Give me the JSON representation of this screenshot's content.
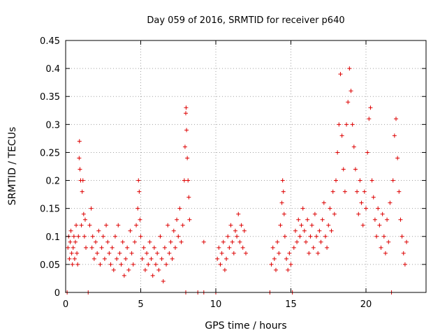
{
  "chart_data": {
    "type": "scatter",
    "title": "Day 059 of 2016, SRMTID for receiver p640",
    "xlabel": "GPS time / hours",
    "ylabel": "SRMTID / TECUs",
    "xlim": [
      0,
      24
    ],
    "ylim": [
      0,
      0.45
    ],
    "xticks": [
      0,
      5,
      10,
      15,
      20
    ],
    "xtick_labels": [
      "0",
      "5",
      "10",
      "15",
      "20"
    ],
    "yticks": [
      0,
      0.05,
      0.1,
      0.15,
      0.2,
      0.25,
      0.3,
      0.35,
      0.4,
      0.45
    ],
    "ytick_labels": [
      "0",
      "0.05",
      "0.1",
      "0.15",
      "0.2",
      "0.25",
      "0.3",
      "0.35",
      "0.4",
      "0.45"
    ],
    "grid": true,
    "marker": "plus",
    "color": "#dd0000",
    "series": [
      {
        "name": "SRMTID",
        "points": [
          [
            0.1,
            0.0
          ],
          [
            0.15,
            0.08
          ],
          [
            0.2,
            0.1
          ],
          [
            0.25,
            0.06
          ],
          [
            0.3,
            0.09
          ],
          [
            0.35,
            0.11
          ],
          [
            0.4,
            0.07
          ],
          [
            0.45,
            0.05
          ],
          [
            0.5,
            0.08
          ],
          [
            0.55,
            0.1
          ],
          [
            0.6,
            0.06
          ],
          [
            0.65,
            0.09
          ],
          [
            0.7,
            0.12
          ],
          [
            0.75,
            0.07
          ],
          [
            0.8,
            0.05
          ],
          [
            0.85,
            0.1
          ],
          [
            0.9,
            0.24
          ],
          [
            0.92,
            0.27
          ],
          [
            0.95,
            0.22
          ],
          [
            1.0,
            0.2
          ],
          [
            1.05,
            0.12
          ],
          [
            1.1,
            0.18
          ],
          [
            1.15,
            0.2
          ],
          [
            1.2,
            0.14
          ],
          [
            1.25,
            0.1
          ],
          [
            1.3,
            0.13
          ],
          [
            1.35,
            0.08
          ],
          [
            1.5,
            0.0
          ],
          [
            1.6,
            0.12
          ],
          [
            1.7,
            0.15
          ],
          [
            1.75,
            0.08
          ],
          [
            1.8,
            0.1
          ],
          [
            1.9,
            0.06
          ],
          [
            2.0,
            0.09
          ],
          [
            2.1,
            0.07
          ],
          [
            2.2,
            0.11
          ],
          [
            2.3,
            0.05
          ],
          [
            2.4,
            0.08
          ],
          [
            2.5,
            0.1
          ],
          [
            2.6,
            0.06
          ],
          [
            2.7,
            0.12
          ],
          [
            2.8,
            0.09
          ],
          [
            2.9,
            0.07
          ],
          [
            3.0,
            0.05
          ],
          [
            3.1,
            0.08
          ],
          [
            3.2,
            0.04
          ],
          [
            3.3,
            0.1
          ],
          [
            3.4,
            0.06
          ],
          [
            3.5,
            0.12
          ],
          [
            3.6,
            0.07
          ],
          [
            3.7,
            0.05
          ],
          [
            3.8,
            0.09
          ],
          [
            3.9,
            0.03
          ],
          [
            4.0,
            0.06
          ],
          [
            4.1,
            0.08
          ],
          [
            4.2,
            0.04
          ],
          [
            4.3,
            0.11
          ],
          [
            4.4,
            0.07
          ],
          [
            4.5,
            0.05
          ],
          [
            4.6,
            0.09
          ],
          [
            4.7,
            0.12
          ],
          [
            4.8,
            0.15
          ],
          [
            4.85,
            0.2
          ],
          [
            4.9,
            0.18
          ],
          [
            4.95,
            0.13
          ],
          [
            5.0,
            0.1
          ],
          [
            5.1,
            0.06
          ],
          [
            5.2,
            0.08
          ],
          [
            5.3,
            0.04
          ],
          [
            5.4,
            0.07
          ],
          [
            5.5,
            0.05
          ],
          [
            5.6,
            0.09
          ],
          [
            5.7,
            0.06
          ],
          [
            5.8,
            0.03
          ],
          [
            5.9,
            0.08
          ],
          [
            6.0,
            0.05
          ],
          [
            6.1,
            0.07
          ],
          [
            6.2,
            0.04
          ],
          [
            6.3,
            0.1
          ],
          [
            6.4,
            0.06
          ],
          [
            6.5,
            0.02
          ],
          [
            6.6,
            0.08
          ],
          [
            6.7,
            0.05
          ],
          [
            6.8,
            0.12
          ],
          [
            6.9,
            0.07
          ],
          [
            7.0,
            0.09
          ],
          [
            7.1,
            0.06
          ],
          [
            7.2,
            0.11
          ],
          [
            7.3,
            0.08
          ],
          [
            7.4,
            0.13
          ],
          [
            7.5,
            0.1
          ],
          [
            7.6,
            0.15
          ],
          [
            7.7,
            0.09
          ],
          [
            7.8,
            0.12
          ],
          [
            7.9,
            0.2
          ],
          [
            7.95,
            0.26
          ],
          [
            8.0,
            0.32
          ],
          [
            8.02,
            0.33
          ],
          [
            8.05,
            0.29
          ],
          [
            8.1,
            0.24
          ],
          [
            8.15,
            0.2
          ],
          [
            8.2,
            0.17
          ],
          [
            8.25,
            0.13
          ],
          [
            8.0,
            0.0
          ],
          [
            8.8,
            0.0
          ],
          [
            9.2,
            0.09
          ],
          [
            9.2,
            0.0
          ],
          [
            10.0,
            0.0
          ],
          [
            10.1,
            0.06
          ],
          [
            10.2,
            0.08
          ],
          [
            10.3,
            0.05
          ],
          [
            10.4,
            0.07
          ],
          [
            10.5,
            0.09
          ],
          [
            10.6,
            0.04
          ],
          [
            10.7,
            0.06
          ],
          [
            10.8,
            0.1
          ],
          [
            10.9,
            0.08
          ],
          [
            11.0,
            0.12
          ],
          [
            11.1,
            0.09
          ],
          [
            11.2,
            0.07
          ],
          [
            11.3,
            0.11
          ],
          [
            11.4,
            0.1
          ],
          [
            11.5,
            0.14
          ],
          [
            11.6,
            0.09
          ],
          [
            11.7,
            0.12
          ],
          [
            11.8,
            0.08
          ],
          [
            11.9,
            0.11
          ],
          [
            12.0,
            0.07
          ],
          [
            13.6,
            0.0
          ],
          [
            13.7,
            0.05
          ],
          [
            13.8,
            0.08
          ],
          [
            13.9,
            0.06
          ],
          [
            14.0,
            0.04
          ],
          [
            14.1,
            0.09
          ],
          [
            14.2,
            0.07
          ],
          [
            14.3,
            0.12
          ],
          [
            14.4,
            0.16
          ],
          [
            14.45,
            0.2
          ],
          [
            14.5,
            0.18
          ],
          [
            14.55,
            0.14
          ],
          [
            14.6,
            0.1
          ],
          [
            14.7,
            0.06
          ],
          [
            14.8,
            0.04
          ],
          [
            14.9,
            0.07
          ],
          [
            15.0,
            0.05
          ],
          [
            15.1,
            0.0
          ],
          [
            15.2,
            0.08
          ],
          [
            15.3,
            0.11
          ],
          [
            15.4,
            0.09
          ],
          [
            15.5,
            0.13
          ],
          [
            15.6,
            0.1
          ],
          [
            15.7,
            0.12
          ],
          [
            15.8,
            0.15
          ],
          [
            15.9,
            0.11
          ],
          [
            16.0,
            0.09
          ],
          [
            16.1,
            0.13
          ],
          [
            16.2,
            0.07
          ],
          [
            16.3,
            0.1
          ],
          [
            16.4,
            0.12
          ],
          [
            16.5,
            0.08
          ],
          [
            16.6,
            0.14
          ],
          [
            16.7,
            0.1
          ],
          [
            16.8,
            0.07
          ],
          [
            16.9,
            0.11
          ],
          [
            17.0,
            0.09
          ],
          [
            17.1,
            0.13
          ],
          [
            17.2,
            0.16
          ],
          [
            17.3,
            0.1
          ],
          [
            17.4,
            0.08
          ],
          [
            17.5,
            0.12
          ],
          [
            17.6,
            0.15
          ],
          [
            17.7,
            0.11
          ],
          [
            17.8,
            0.18
          ],
          [
            17.9,
            0.14
          ],
          [
            18.0,
            0.2
          ],
          [
            18.1,
            0.25
          ],
          [
            18.2,
            0.3
          ],
          [
            18.3,
            0.39
          ],
          [
            18.4,
            0.28
          ],
          [
            18.5,
            0.22
          ],
          [
            18.6,
            0.18
          ],
          [
            18.7,
            0.3
          ],
          [
            18.8,
            0.34
          ],
          [
            18.9,
            0.4
          ],
          [
            19.0,
            0.36
          ],
          [
            19.1,
            0.3
          ],
          [
            19.2,
            0.26
          ],
          [
            19.3,
            0.22
          ],
          [
            19.4,
            0.18
          ],
          [
            19.5,
            0.14
          ],
          [
            19.6,
            0.2
          ],
          [
            19.7,
            0.16
          ],
          [
            19.8,
            0.12
          ],
          [
            19.9,
            0.18
          ],
          [
            20.0,
            0.15
          ],
          [
            20.1,
            0.25
          ],
          [
            20.2,
            0.31
          ],
          [
            20.3,
            0.33
          ],
          [
            20.4,
            0.2
          ],
          [
            20.5,
            0.17
          ],
          [
            20.6,
            0.13
          ],
          [
            20.7,
            0.1
          ],
          [
            20.8,
            0.15
          ],
          [
            20.9,
            0.12
          ],
          [
            21.0,
            0.08
          ],
          [
            21.1,
            0.14
          ],
          [
            21.2,
            0.1
          ],
          [
            21.3,
            0.07
          ],
          [
            21.4,
            0.13
          ],
          [
            21.5,
            0.09
          ],
          [
            21.6,
            0.16
          ],
          [
            21.7,
            0.0
          ],
          [
            21.8,
            0.2
          ],
          [
            21.9,
            0.28
          ],
          [
            22.0,
            0.31
          ],
          [
            22.1,
            0.24
          ],
          [
            22.2,
            0.18
          ],
          [
            22.3,
            0.13
          ],
          [
            22.4,
            0.1
          ],
          [
            22.5,
            0.07
          ],
          [
            22.6,
            0.05
          ],
          [
            22.7,
            0.09
          ]
        ]
      }
    ]
  }
}
